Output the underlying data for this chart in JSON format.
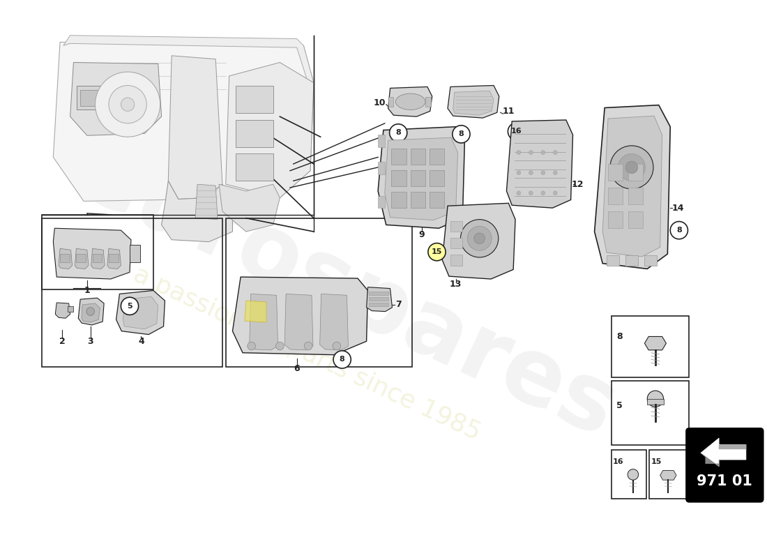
{
  "background_color": "#ffffff",
  "watermark_text": "eurospares",
  "watermark_subtext": "a passion for parts since 1985",
  "diagram_code": "971 01",
  "line_color": "#222222",
  "part_color": "#444444",
  "light_fill": "#e8e8e8",
  "mid_fill": "#cccccc",
  "dark_fill": "#999999",
  "watermark_color": "#d0d0d0",
  "watermark_alpha": 0.25,
  "sub_watermark_color": "#e8e8c0",
  "sub_watermark_alpha": 0.5
}
